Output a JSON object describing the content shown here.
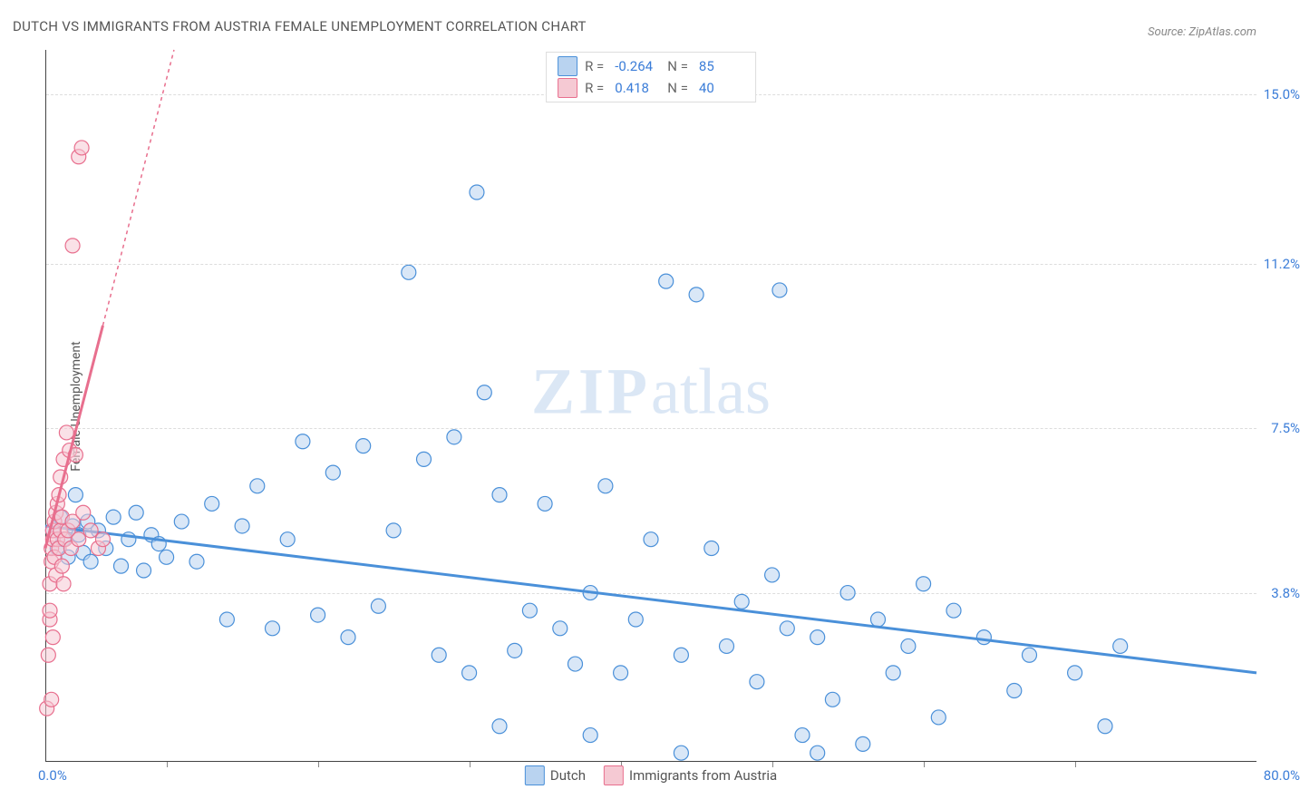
{
  "title": "DUTCH VS IMMIGRANTS FROM AUSTRIA FEMALE UNEMPLOYMENT CORRELATION CHART",
  "source": "Source: ZipAtlas.com",
  "watermark_a": "ZIP",
  "watermark_b": "atlas",
  "chart": {
    "type": "scatter",
    "ylabel": "Female Unemployment",
    "xlim": [
      0,
      80
    ],
    "ylim": [
      0,
      16
    ],
    "x_origin_label": "0.0%",
    "x_max_label": "80.0%",
    "y_ticks": [
      {
        "value": 15.0,
        "label": "15.0%"
      },
      {
        "value": 11.2,
        "label": "11.2%"
      },
      {
        "value": 7.5,
        "label": "7.5%"
      },
      {
        "value": 3.8,
        "label": "3.8%"
      }
    ],
    "x_tick_positions": [
      8,
      18,
      28,
      38,
      48,
      58,
      68
    ],
    "background_color": "#ffffff",
    "grid_color": "#dddddd",
    "axis_color": "#444444",
    "tick_label_color": "#3b7dd8",
    "marker_radius": 8,
    "marker_opacity": 0.55,
    "trend_line_width": 3,
    "series": [
      {
        "name": "Dutch",
        "color_fill": "#b9d3f0",
        "color_stroke": "#4a90d9",
        "correlation_r": "-0.264",
        "n_value": "85",
        "trend": {
          "x1": 0,
          "y1": 5.3,
          "x2": 80,
          "y2": 2.0,
          "solid_to_x": 80
        },
        "points": [
          [
            0.5,
            5.2
          ],
          [
            0.8,
            4.8
          ],
          [
            1.0,
            5.5
          ],
          [
            1.2,
            5.0
          ],
          [
            1.5,
            4.6
          ],
          [
            1.8,
            5.3
          ],
          [
            2.0,
            6.0
          ],
          [
            2.2,
            5.1
          ],
          [
            2.5,
            4.7
          ],
          [
            2.8,
            5.4
          ],
          [
            3.0,
            4.5
          ],
          [
            3.5,
            5.2
          ],
          [
            4.0,
            4.8
          ],
          [
            4.5,
            5.5
          ],
          [
            5.0,
            4.4
          ],
          [
            5.5,
            5.0
          ],
          [
            6.0,
            5.6
          ],
          [
            6.5,
            4.3
          ],
          [
            7.0,
            5.1
          ],
          [
            7.5,
            4.9
          ],
          [
            8.0,
            4.6
          ],
          [
            9.0,
            5.4
          ],
          [
            10.0,
            4.5
          ],
          [
            11.0,
            5.8
          ],
          [
            12.0,
            3.2
          ],
          [
            13.0,
            5.3
          ],
          [
            14.0,
            6.2
          ],
          [
            15.0,
            3.0
          ],
          [
            16.0,
            5.0
          ],
          [
            17.0,
            7.2
          ],
          [
            18.0,
            3.3
          ],
          [
            19.0,
            6.5
          ],
          [
            20.0,
            2.8
          ],
          [
            21.0,
            7.1
          ],
          [
            22.0,
            3.5
          ],
          [
            23.0,
            5.2
          ],
          [
            24.0,
            11.0
          ],
          [
            25.0,
            6.8
          ],
          [
            26.0,
            2.4
          ],
          [
            27.0,
            7.3
          ],
          [
            28.0,
            2.0
          ],
          [
            29.0,
            8.3
          ],
          [
            30.0,
            6.0
          ],
          [
            31.0,
            2.5
          ],
          [
            32.0,
            3.4
          ],
          [
            33.0,
            5.8
          ],
          [
            34.0,
            3.0
          ],
          [
            28.5,
            12.8
          ],
          [
            35.0,
            2.2
          ],
          [
            36.0,
            3.8
          ],
          [
            37.0,
            6.2
          ],
          [
            38.0,
            2.0
          ],
          [
            39.0,
            3.2
          ],
          [
            40.0,
            5.0
          ],
          [
            41.0,
            10.8
          ],
          [
            42.0,
            2.4
          ],
          [
            43.0,
            10.5
          ],
          [
            44.0,
            4.8
          ],
          [
            45.0,
            2.6
          ],
          [
            46.0,
            3.6
          ],
          [
            47.0,
            1.8
          ],
          [
            48.0,
            4.2
          ],
          [
            49.0,
            3.0
          ],
          [
            50.0,
            0.6
          ],
          [
            51.0,
            2.8
          ],
          [
            52.0,
            1.4
          ],
          [
            53.0,
            3.8
          ],
          [
            54.0,
            0.4
          ],
          [
            55.0,
            3.2
          ],
          [
            56.0,
            2.0
          ],
          [
            57.0,
            2.6
          ],
          [
            58.0,
            4.0
          ],
          [
            59.0,
            1.0
          ],
          [
            60.0,
            3.4
          ],
          [
            48.5,
            10.6
          ],
          [
            62.0,
            2.8
          ],
          [
            64.0,
            1.6
          ],
          [
            65.0,
            2.4
          ],
          [
            68.0,
            2.0
          ],
          [
            70.0,
            0.8
          ],
          [
            71.0,
            2.6
          ],
          [
            51.0,
            0.2
          ],
          [
            42.0,
            0.2
          ],
          [
            36.0,
            0.6
          ],
          [
            30.0,
            0.8
          ]
        ]
      },
      {
        "name": "Immigrants from Austria",
        "color_fill": "#f5c9d3",
        "color_stroke": "#e86f8e",
        "correlation_r": "0.418",
        "n_value": "40",
        "trend": {
          "x1": 0,
          "y1": 4.8,
          "x2": 8.5,
          "y2": 16.0,
          "solid_to_x": 3.8
        },
        "points": [
          [
            0.1,
            1.2
          ],
          [
            0.2,
            2.4
          ],
          [
            0.3,
            3.2
          ],
          [
            0.3,
            4.0
          ],
          [
            0.4,
            4.5
          ],
          [
            0.4,
            4.8
          ],
          [
            0.5,
            5.0
          ],
          [
            0.5,
            5.2
          ],
          [
            0.6,
            5.4
          ],
          [
            0.6,
            4.6
          ],
          [
            0.7,
            5.6
          ],
          [
            0.7,
            4.2
          ],
          [
            0.8,
            5.8
          ],
          [
            0.8,
            5.0
          ],
          [
            0.9,
            4.8
          ],
          [
            0.9,
            6.0
          ],
          [
            1.0,
            5.2
          ],
          [
            1.0,
            6.4
          ],
          [
            1.1,
            4.4
          ],
          [
            1.1,
            5.5
          ],
          [
            1.2,
            6.8
          ],
          [
            1.2,
            4.0
          ],
          [
            1.3,
            5.0
          ],
          [
            1.4,
            7.4
          ],
          [
            1.5,
            5.2
          ],
          [
            1.6,
            7.0
          ],
          [
            1.7,
            4.8
          ],
          [
            1.8,
            5.4
          ],
          [
            2.0,
            6.9
          ],
          [
            2.2,
            5.0
          ],
          [
            2.5,
            5.6
          ],
          [
            3.0,
            5.2
          ],
          [
            3.5,
            4.8
          ],
          [
            0.3,
            3.4
          ],
          [
            0.5,
            2.8
          ],
          [
            0.4,
            1.4
          ],
          [
            1.8,
            11.6
          ],
          [
            2.2,
            13.6
          ],
          [
            2.4,
            13.8
          ],
          [
            3.8,
            5.0
          ]
        ]
      }
    ]
  },
  "legend_bottom": [
    {
      "label": "Dutch",
      "fill": "#b9d3f0",
      "stroke": "#4a90d9"
    },
    {
      "label": "Immigrants from Austria",
      "fill": "#f5c9d3",
      "stroke": "#e86f8e"
    }
  ]
}
